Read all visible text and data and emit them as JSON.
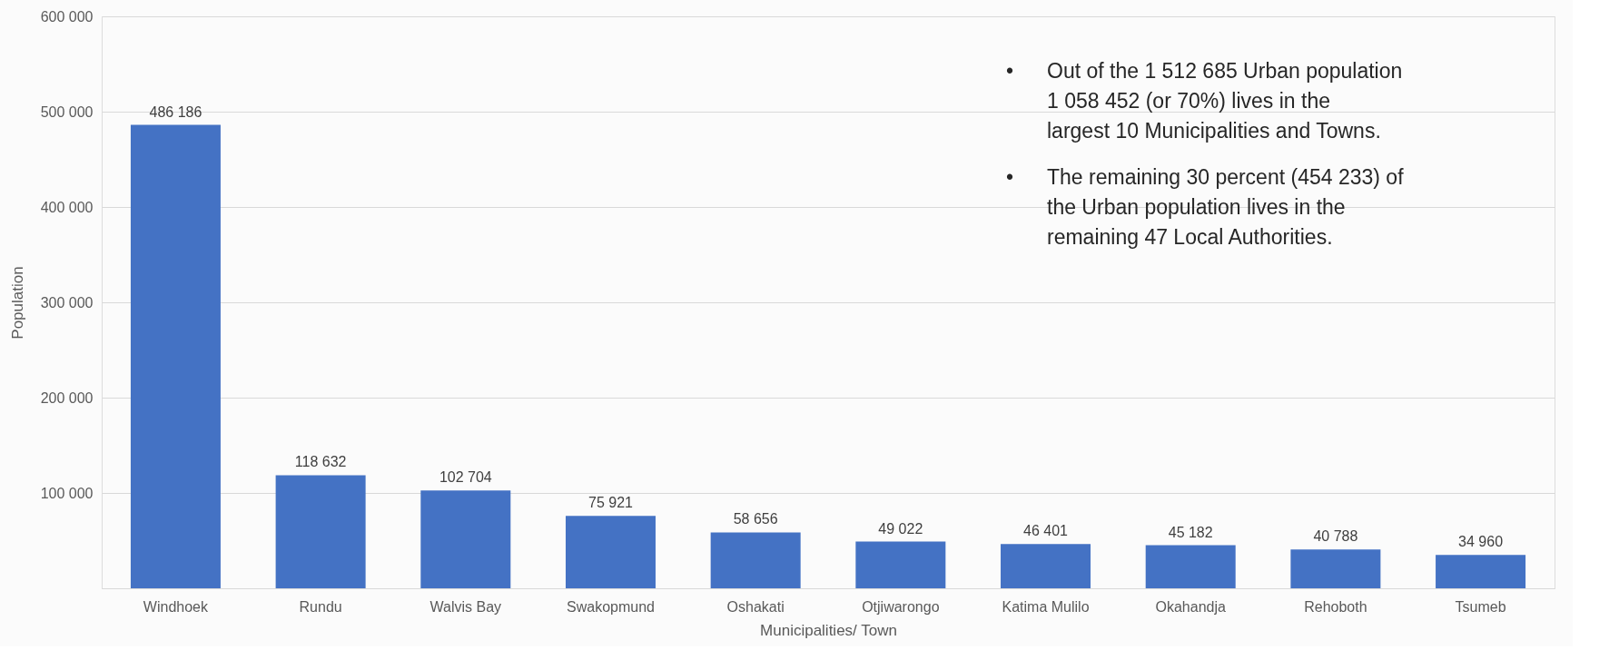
{
  "chart_data": {
    "type": "bar",
    "xlabel": "Municipalities/ Town",
    "ylabel": "Population",
    "categories": [
      "Windhoek",
      "Rundu",
      "Walvis Bay",
      "Swakopmund",
      "Oshakati",
      "Otjiwarongo",
      "Katima Mulilo",
      "Okahandja",
      "Rehoboth",
      "Tsumeb"
    ],
    "values": [
      486186,
      118632,
      102704,
      75921,
      58656,
      49022,
      46401,
      45182,
      40788,
      34960
    ],
    "value_labels": [
      "486 186",
      "118 632",
      "102 704",
      "75 921",
      "58 656",
      "49 022",
      "46 401",
      "45 182",
      "40 788",
      "34 960"
    ],
    "color": "#4472c4",
    "ylim": [
      0,
      600000
    ],
    "yticks": [
      {
        "value": 0,
        "label": null
      },
      {
        "value": 100000,
        "label": "100 000"
      },
      {
        "value": 200000,
        "label": "200 000"
      },
      {
        "value": 300000,
        "label": "300 000"
      },
      {
        "value": 400000,
        "label": "400 000"
      },
      {
        "value": 500000,
        "label": "500 000"
      },
      {
        "value": 600000,
        "label": "600 000"
      }
    ],
    "grid": "y",
    "annotations": [
      "•\tOut of the 1 512 685 Urban population 1 058 452 (or 70%) lives in the largest 10 Municipalities and Towns.",
      "•\tThe remaining 30 percent (454 233) of the Urban population lives in the remaining 47  Local Authorities."
    ]
  }
}
